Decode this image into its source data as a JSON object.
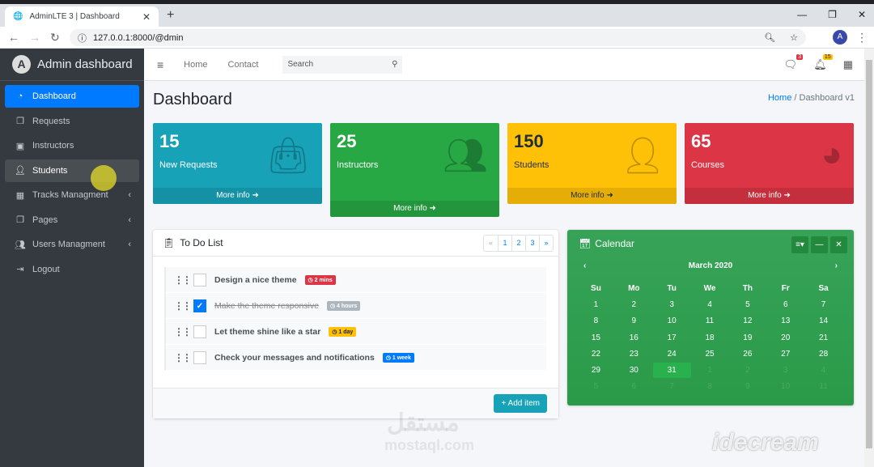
{
  "browser": {
    "tab_title": "AdminLTE 3 | Dashboard",
    "url": "127.0.0.1:8000/@dmin",
    "profile": "A"
  },
  "sidebar": {
    "brand": "Admin dashboard",
    "brand_logo": "A",
    "items": [
      {
        "label": "Dashboard",
        "icon": "tachometer-icon",
        "active": true
      },
      {
        "label": "Requests",
        "icon": "copy-icon"
      },
      {
        "label": "Instructors",
        "icon": "chalkboard-teacher-icon"
      },
      {
        "label": "Students",
        "icon": "user-plus-icon",
        "hover": true
      },
      {
        "label": "Tracks Managment",
        "icon": "th-icon",
        "submenu": true
      },
      {
        "label": "Pages",
        "icon": "copy-icon",
        "submenu": true
      },
      {
        "label": "Users Managment",
        "icon": "users-icon",
        "submenu": true
      },
      {
        "label": "Logout",
        "icon": "sign-out-icon"
      }
    ]
  },
  "navbar": {
    "home": "Home",
    "contact": "Contact",
    "search_placeholder": "Search",
    "messages_count": "3",
    "notifications_count": "15"
  },
  "page": {
    "title": "Dashboard",
    "breadcrumb": [
      "Home",
      "Dashboard v1"
    ]
  },
  "stats": [
    {
      "value": "15",
      "label": "New Requests",
      "link": "More info",
      "color": "#17a2b8"
    },
    {
      "value": "25",
      "label": "Instructors",
      "link": "More info",
      "color": "#28a745"
    },
    {
      "value": "150",
      "label": "Students",
      "link": "More info",
      "color": "#ffc107"
    },
    {
      "value": "65",
      "label": "Courses",
      "link": "More info",
      "color": "#dc3545"
    }
  ],
  "todo": {
    "title": "To Do List",
    "pages": [
      "«",
      "1",
      "2",
      "3",
      "»"
    ],
    "add_label": "Add item",
    "items": [
      {
        "text": "Design a nice theme",
        "time": "2 mins",
        "color": "#dc3545",
        "done": false
      },
      {
        "text": "Make the theme responsive",
        "time": "4 hours",
        "color": "#adb5bd",
        "done": true
      },
      {
        "text": "Let theme shine like a star",
        "time": "1 day",
        "color": "#ffc107",
        "done": false
      },
      {
        "text": "Check your messages and notifications",
        "time": "1 week",
        "color": "#007bff",
        "done": false
      }
    ]
  },
  "calendar": {
    "title": "Calendar",
    "month": "March 2020",
    "selected": "31",
    "days": [
      "Su",
      "Mo",
      "Tu",
      "We",
      "Th",
      "Fr",
      "Sa"
    ],
    "weeks": [
      [
        "1",
        "2",
        "3",
        "4",
        "5",
        "6",
        "7"
      ],
      [
        "8",
        "9",
        "10",
        "11",
        "12",
        "13",
        "14"
      ],
      [
        "15",
        "16",
        "17",
        "18",
        "19",
        "20",
        "21"
      ],
      [
        "22",
        "23",
        "24",
        "25",
        "26",
        "27",
        "28"
      ],
      [
        "29",
        "30",
        "31",
        "1",
        "2",
        "3",
        "4"
      ],
      [
        "5",
        "6",
        "7",
        "8",
        "9",
        "10",
        "11"
      ]
    ]
  },
  "watermarks": {
    "mostaql": "mostaql.com",
    "idecream": "idecream"
  }
}
